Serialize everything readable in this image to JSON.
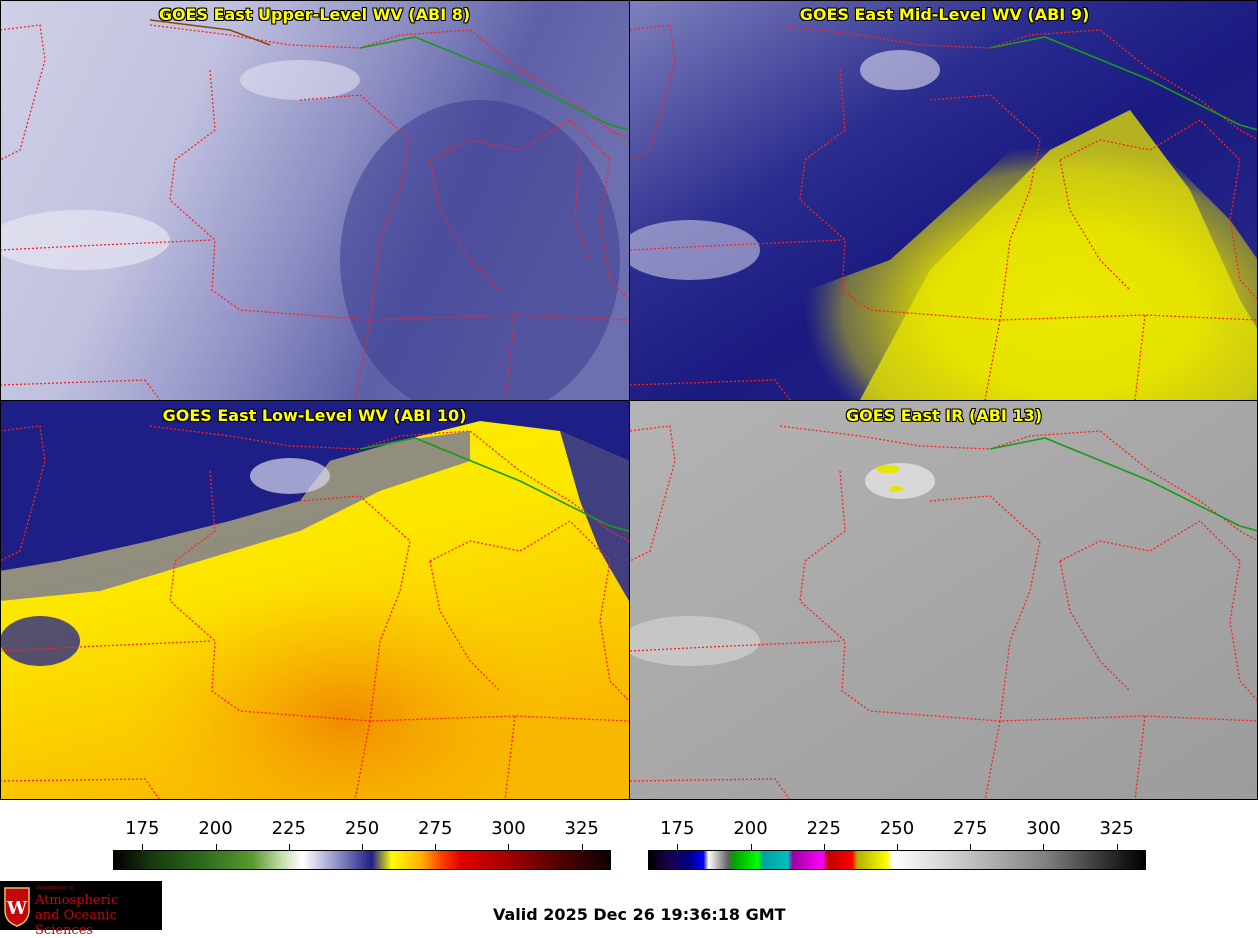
{
  "panels": [
    {
      "title": "GOES East Upper-Level WV (ABI 8)",
      "palette": "wv-upper"
    },
    {
      "title": "GOES East Mid-Level WV (ABI 9)",
      "palette": "wv-mid"
    },
    {
      "title": "GOES East Low-Level WV (ABI 10)",
      "palette": "wv-low"
    },
    {
      "title": "GOES East IR (ABI 13)",
      "palette": "ir-gray"
    }
  ],
  "colorbars": {
    "wv": {
      "ticks": [
        "175",
        "200",
        "225",
        "250",
        "275",
        "300",
        "325"
      ],
      "min": 165,
      "max": 335
    },
    "ir": {
      "ticks": [
        "175",
        "200",
        "225",
        "250",
        "275",
        "300",
        "325"
      ],
      "min": 165,
      "max": 335
    }
  },
  "logo": {
    "line1": "Department of",
    "line2": "Atmospheric",
    "line3": "and Oceanic Sciences",
    "seal_icon": "uw-crest-icon"
  },
  "valid_time": "Valid 2025 Dec 26 19:36:18 GMT",
  "colors": {
    "border_us": "#ff2020",
    "border_canada": "#1a9a1a",
    "title": "#ffff00"
  }
}
